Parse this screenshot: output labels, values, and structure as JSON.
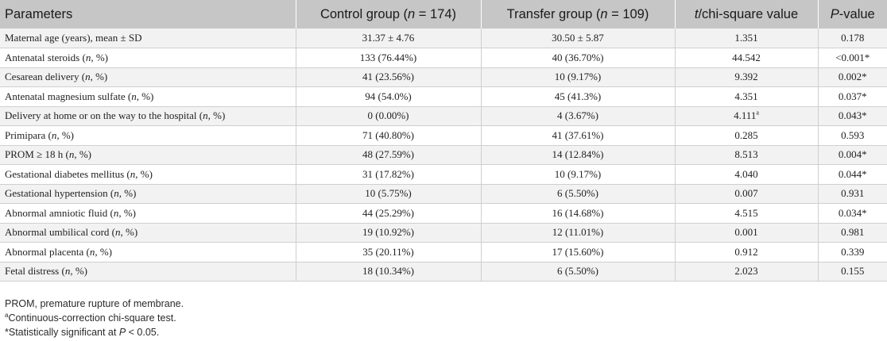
{
  "table": {
    "header": {
      "param": "Parameters",
      "control_prefix": "Control group (",
      "control_n": "n",
      "control_suffix": " = 174)",
      "transfer_prefix": "Transfer group (",
      "transfer_n": "n",
      "transfer_suffix": " = 109)",
      "t_italic": "t",
      "t_suffix": "/chi-square value",
      "p_italic": "P",
      "p_suffix": "-value"
    },
    "rows": [
      {
        "label": "Maternal age (years), mean ± SD",
        "label_italic": "",
        "label_tail": "",
        "control": "31.37 ± 4.76",
        "transfer": "30.50 ± 5.87",
        "stat": "1.351",
        "stat_sup": "",
        "p": "0.178"
      },
      {
        "label": "Antenatal steroids (",
        "label_italic": "n",
        "label_tail": ", %)",
        "control": "133 (76.44%)",
        "transfer": "40 (36.70%)",
        "stat": "44.542",
        "stat_sup": "",
        "p": "<0.001*"
      },
      {
        "label": "Cesarean delivery (",
        "label_italic": "n",
        "label_tail": ", %)",
        "control": "41 (23.56%)",
        "transfer": "10 (9.17%)",
        "stat": "9.392",
        "stat_sup": "",
        "p": "0.002*"
      },
      {
        "label": "Antenatal magnesium sulfate (",
        "label_italic": "n",
        "label_tail": ", %)",
        "control": "94 (54.0%)",
        "transfer": "45 (41.3%)",
        "stat": "4.351",
        "stat_sup": "",
        "p": "0.037*"
      },
      {
        "label": "Delivery at home or on the way to the hospital (",
        "label_italic": "n",
        "label_tail": ", %)",
        "control": "0 (0.00%)",
        "transfer": "4 (3.67%)",
        "stat": "4.111",
        "stat_sup": "a",
        "p": "0.043*"
      },
      {
        "label": "Primipara (",
        "label_italic": "n",
        "label_tail": ", %)",
        "control": "71 (40.80%)",
        "transfer": "41 (37.61%)",
        "stat": "0.285",
        "stat_sup": "",
        "p": "0.593"
      },
      {
        "label": "PROM ≥ 18 h (",
        "label_italic": "n",
        "label_tail": ", %)",
        "control": "48 (27.59%)",
        "transfer": "14 (12.84%)",
        "stat": "8.513",
        "stat_sup": "",
        "p": "0.004*"
      },
      {
        "label": "Gestational diabetes mellitus (",
        "label_italic": "n",
        "label_tail": ", %)",
        "control": "31 (17.82%)",
        "transfer": "10 (9.17%)",
        "stat": "4.040",
        "stat_sup": "",
        "p": "0.044*"
      },
      {
        "label": "Gestational hypertension (",
        "label_italic": "n",
        "label_tail": ", %)",
        "control": "10 (5.75%)",
        "transfer": "6 (5.50%)",
        "stat": "0.007",
        "stat_sup": "",
        "p": "0.931"
      },
      {
        "label": "Abnormal amniotic fluid (",
        "label_italic": "n",
        "label_tail": ", %)",
        "control": "44 (25.29%)",
        "transfer": "16 (14.68%)",
        "stat": "4.515",
        "stat_sup": "",
        "p": "0.034*"
      },
      {
        "label": "Abnormal umbilical cord (",
        "label_italic": "n",
        "label_tail": ", %)",
        "control": "19 (10.92%)",
        "transfer": "12 (11.01%)",
        "stat": "0.001",
        "stat_sup": "",
        "p": "0.981"
      },
      {
        "label": "Abnormal placenta (",
        "label_italic": "n",
        "label_tail": ", %)",
        "control": "35 (20.11%)",
        "transfer": "17 (15.60%)",
        "stat": "0.912",
        "stat_sup": "",
        "p": "0.339"
      },
      {
        "label": "Fetal distress (",
        "label_italic": "n",
        "label_tail": ", %)",
        "control": "18 (10.34%)",
        "transfer": "6 (5.50%)",
        "stat": "2.023",
        "stat_sup": "",
        "p": "0.155"
      }
    ]
  },
  "notes": {
    "abbrev": "PROM, premature rupture of membrane.",
    "a_sup": "a",
    "a_text": "Continuous-correction chi-square test.",
    "star_prefix": "*Statistically significant at ",
    "star_italic": "P",
    "star_suffix": " < 0.05."
  }
}
